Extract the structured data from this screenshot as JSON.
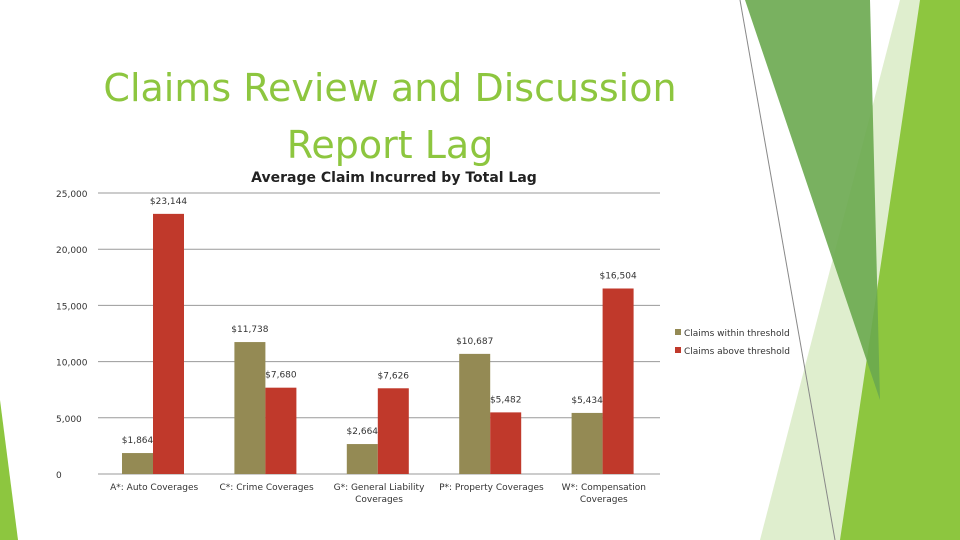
{
  "slide": {
    "title_line1": "Claims Review and Discussion",
    "title_line2": "Report Lag"
  },
  "colors": {
    "title": "#8dc63f",
    "series1": "#948a54",
    "series2": "#c0392b",
    "deco_green_dark": "#6aa84f",
    "deco_green_light": "#c5e0a5"
  },
  "chart_data": {
    "type": "bar",
    "title": "Average Claim Incurred by Total Lag",
    "xlabel": "",
    "ylabel": "",
    "ylim": [
      0,
      25000
    ],
    "yticks": [
      "0",
      "5,000",
      "10,000",
      "15,000",
      "20,000",
      "25,000"
    ],
    "ytick_values": [
      0,
      5000,
      10000,
      15000,
      20000,
      25000
    ],
    "categories": [
      [
        "A*: Auto Coverages"
      ],
      [
        "C*: Crime Coverages"
      ],
      [
        "G*: General Liability",
        "Coverages"
      ],
      [
        "P*: Property Coverages"
      ],
      [
        "W*: Compensation",
        "Coverages"
      ]
    ],
    "series": [
      {
        "name": "Claims within threshold",
        "values": [
          1864,
          11738,
          2664,
          10687,
          5434
        ],
        "labels": [
          "$1,864",
          "$11,738",
          "$2,664",
          "$10,687",
          "$5,434"
        ]
      },
      {
        "name": "Claims above threshold",
        "values": [
          23144,
          7680,
          7626,
          5482,
          16504
        ],
        "labels": [
          "$23,144",
          "$7,680",
          "$7,626",
          "$5,482",
          "$16,504"
        ]
      }
    ],
    "legend_position": "right",
    "grid": true
  }
}
